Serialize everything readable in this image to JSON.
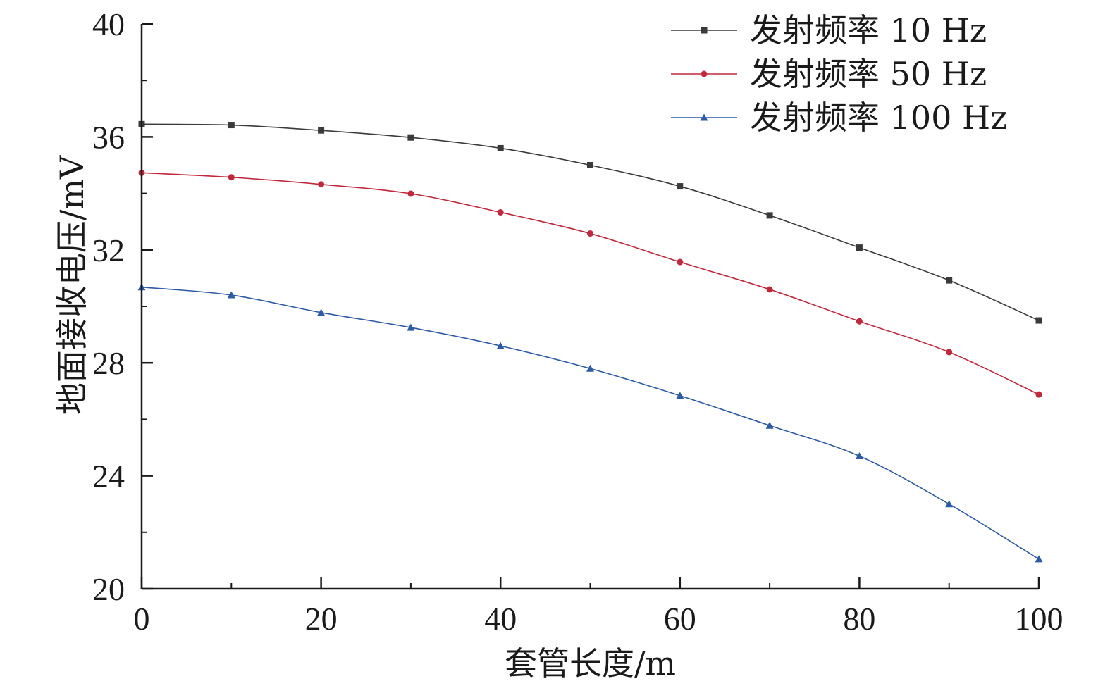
{
  "chart_data": {
    "type": "line",
    "xlabel": "套管长度/m",
    "ylabel": "地面接收电压/mV",
    "xlim": [
      0,
      100
    ],
    "ylim": [
      20,
      40
    ],
    "xticks": [
      0,
      20,
      40,
      60,
      80,
      100
    ],
    "yticks": [
      20,
      24,
      28,
      32,
      36,
      40
    ],
    "x": [
      0,
      10,
      20,
      30,
      40,
      50,
      60,
      70,
      80,
      90,
      100
    ],
    "legend_position": "top-right",
    "grid": false,
    "series": [
      {
        "name": "发射频率 10 Hz",
        "color": "#3a3a3a",
        "marker": "square",
        "values": [
          36.45,
          36.42,
          36.23,
          35.98,
          35.6,
          35.0,
          34.25,
          33.22,
          32.08,
          30.92,
          29.5
        ]
      },
      {
        "name": "发射频率 50 Hz",
        "color": "#c0283c",
        "marker": "circle",
        "values": [
          34.73,
          34.57,
          34.32,
          33.99,
          33.33,
          32.58,
          31.57,
          30.6,
          29.47,
          28.38,
          26.88
        ]
      },
      {
        "name": "发射频率 100 Hz",
        "color": "#2d5aa6",
        "marker": "triangle",
        "values": [
          30.68,
          30.4,
          29.78,
          29.25,
          28.6,
          27.8,
          26.84,
          25.78,
          24.7,
          23.0,
          21.05
        ]
      }
    ]
  }
}
